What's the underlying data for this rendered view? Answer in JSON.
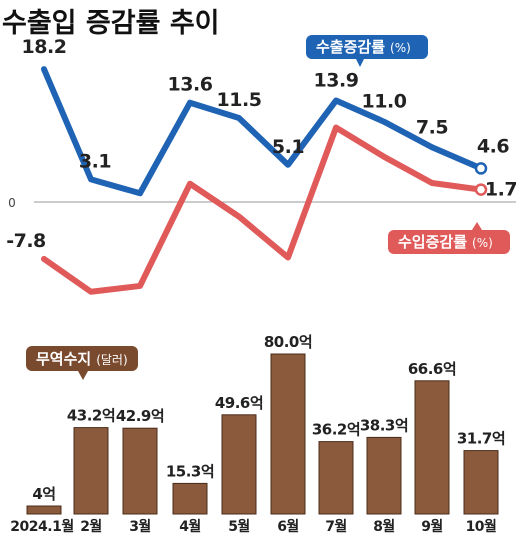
{
  "colors": {
    "export": "#1f63b4",
    "import": "#e05a5a",
    "bar": "#8b5a3c",
    "bar_border": "#4a2c1a",
    "label_box": "#7a4a2e"
  },
  "chart_data": [
    {
      "type": "line",
      "title": "수출입 증감률 추이",
      "zero_label": "0",
      "categories": [
        "2024.1월",
        "2월",
        "3월",
        "4월",
        "5월",
        "6월",
        "7월",
        "8월",
        "9월",
        "10월"
      ],
      "series": [
        {
          "name": "수출증감률",
          "unit": "(%)",
          "values": [
            18.2,
            3.1,
            1.2,
            13.6,
            11.5,
            5.1,
            13.9,
            11.0,
            7.5,
            4.6
          ],
          "labels": [
            "18.2",
            "3.1",
            "",
            "13.6",
            "11.5",
            "5.1",
            "13.9",
            "11.0",
            "7.5",
            "4.6"
          ]
        },
        {
          "name": "수입증감률",
          "unit": "(%)",
          "values": [
            -7.8,
            -12.3,
            -11.5,
            2.5,
            -2.0,
            -7.6,
            10.2,
            6.2,
            2.6,
            1.7
          ],
          "labels": [
            "-7.8",
            "",
            "",
            "",
            "",
            "",
            "",
            "",
            "",
            "1.7"
          ]
        }
      ],
      "ylim": [
        -14,
        22
      ]
    },
    {
      "type": "bar",
      "series_name": "무역수지",
      "series_unit": "(달러)",
      "categories": [
        "2024.1월",
        "2월",
        "3월",
        "4월",
        "5월",
        "6월",
        "7월",
        "8월",
        "9월",
        "10월"
      ],
      "values": [
        4,
        43.2,
        42.9,
        15.3,
        49.6,
        80.0,
        36.2,
        38.3,
        66.6,
        31.7
      ],
      "labels": [
        "4억",
        "43.2억",
        "42.9억",
        "15.3억",
        "49.6억",
        "80.0억",
        "36.2억",
        "38.3억",
        "66.6억",
        "31.7억"
      ],
      "ylim": [
        0,
        80
      ]
    }
  ]
}
